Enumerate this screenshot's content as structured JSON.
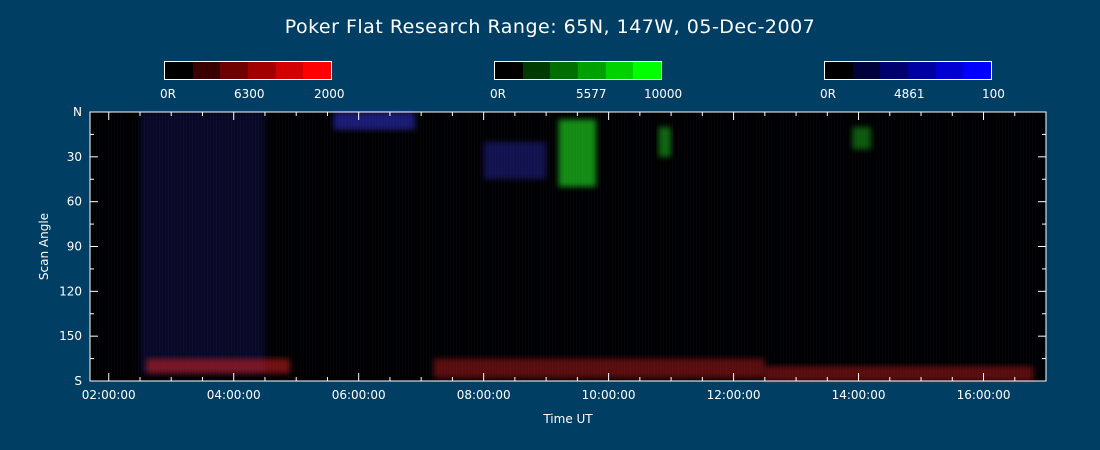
{
  "chart_data": {
    "type": "heatmap",
    "title": "Poker Flat Research Range: 65N, 147W, 05-Dec-2007",
    "xlabel": "Time UT",
    "ylabel": "Scan Angle",
    "xlim_hours": [
      1.7,
      17.0
    ],
    "ylim": [
      0,
      180
    ],
    "x_ticks": [
      {
        "value": 2,
        "label": "02:00:00"
      },
      {
        "value": 4,
        "label": "04:00:00"
      },
      {
        "value": 6,
        "label": "06:00:00"
      },
      {
        "value": 8,
        "label": "08:00:00"
      },
      {
        "value": 10,
        "label": "10:00:00"
      },
      {
        "value": 12,
        "label": "12:00:00"
      },
      {
        "value": 14,
        "label": "14:00:00"
      },
      {
        "value": 16,
        "label": "16:00:00"
      }
    ],
    "y_ticks": [
      {
        "value": 0,
        "label": "N"
      },
      {
        "value": 30,
        "label": "30"
      },
      {
        "value": 60,
        "label": "60"
      },
      {
        "value": 90,
        "label": "90"
      },
      {
        "value": 120,
        "label": "120"
      },
      {
        "value": 150,
        "label": "150"
      },
      {
        "value": 180,
        "label": "S"
      }
    ],
    "color_scales": [
      {
        "name": "6300",
        "min_label": "0R",
        "max_label": "2000",
        "colors": [
          "#000000",
          "#3a0000",
          "#6e0000",
          "#a00000",
          "#d20000",
          "#ff0000"
        ]
      },
      {
        "name": "5577",
        "min_label": "0R",
        "max_label": "10000",
        "colors": [
          "#000000",
          "#003a00",
          "#006e00",
          "#00a000",
          "#00d200",
          "#00ff00"
        ]
      },
      {
        "name": "4861",
        "min_label": "0R",
        "max_label": "100",
        "colors": [
          "#000000",
          "#00003a",
          "#00006e",
          "#0000a0",
          "#0000d2",
          "#0000ff"
        ]
      }
    ],
    "features": [
      {
        "channel": "5577",
        "x_start": 9.2,
        "x_end": 9.8,
        "y_start": 5,
        "y_end": 50,
        "intensity": 0.55
      },
      {
        "channel": "5577",
        "x_start": 10.8,
        "x_end": 11.0,
        "y_start": 10,
        "y_end": 30,
        "intensity": 0.4
      },
      {
        "channel": "5577",
        "x_start": 13.9,
        "x_end": 14.2,
        "y_start": 10,
        "y_end": 25,
        "intensity": 0.35
      },
      {
        "channel": "4861",
        "x_start": 5.6,
        "x_end": 6.9,
        "y_start": 0,
        "y_end": 12,
        "intensity": 0.45
      },
      {
        "channel": "4861",
        "x_start": 8.0,
        "x_end": 9.0,
        "y_start": 20,
        "y_end": 45,
        "intensity": 0.3
      },
      {
        "channel": "4861",
        "x_start": 2.5,
        "x_end": 4.5,
        "y_start": 0,
        "y_end": 175,
        "intensity": 0.15
      },
      {
        "channel": "6300",
        "x_start": 2.6,
        "x_end": 4.9,
        "y_start": 165,
        "y_end": 175,
        "intensity": 0.45
      },
      {
        "channel": "6300",
        "x_start": 7.2,
        "x_end": 12.5,
        "y_start": 165,
        "y_end": 178,
        "intensity": 0.35
      },
      {
        "channel": "6300",
        "x_start": 12.5,
        "x_end": 16.8,
        "y_start": 170,
        "y_end": 180,
        "intensity": 0.35
      }
    ],
    "grid": false,
    "background": "#003e63",
    "axis_color": "#ffffff"
  }
}
